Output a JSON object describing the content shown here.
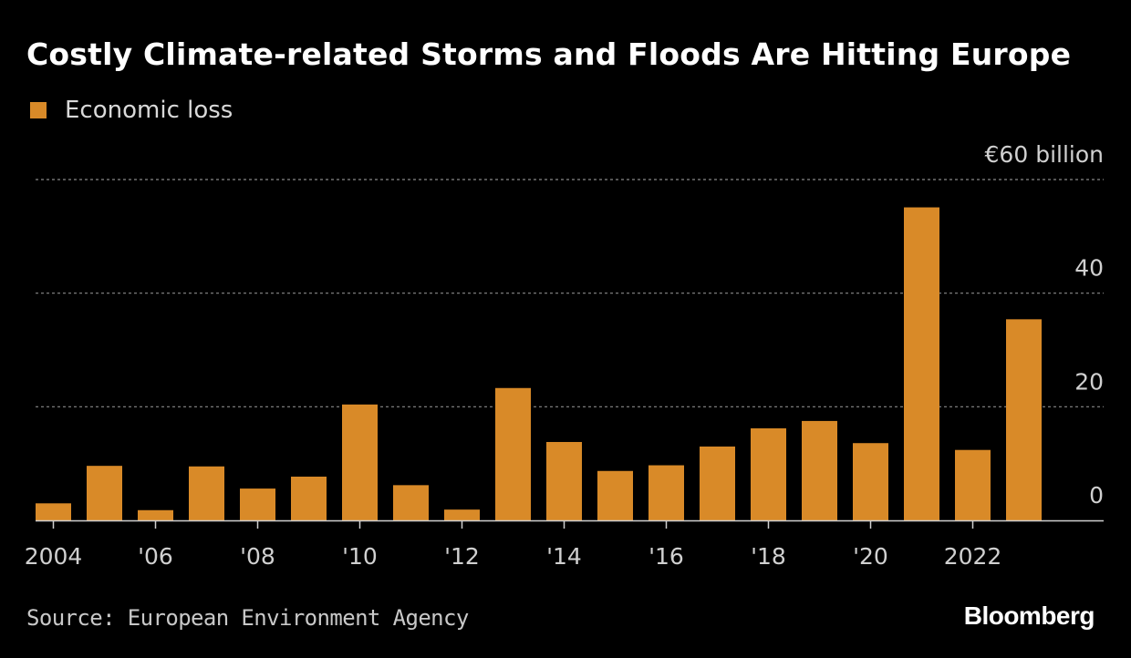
{
  "title": "Costly Climate-related Storms and Floods Are Hitting Europe",
  "legend": {
    "label": "Economic loss"
  },
  "source": "Source: European Environment Agency",
  "brand": "Bloomberg",
  "colors": {
    "bar": "#d98a28",
    "background": "#000000",
    "grid": "#8a8a8a",
    "axis": "#d0d0d0",
    "text": "#d0d0d0"
  },
  "chart_data": {
    "type": "bar",
    "title": "Costly Climate-related Storms and Floods Are Hitting Europe",
    "xlabel": "",
    "ylabel": "",
    "ylim": [
      0,
      60
    ],
    "grid": true,
    "legend_position": "top-left",
    "categories": [
      "2004",
      "2005",
      "2006",
      "2007",
      "2008",
      "2009",
      "2010",
      "2011",
      "2012",
      "2013",
      "2014",
      "2015",
      "2016",
      "2017",
      "2018",
      "2019",
      "2020",
      "2021",
      "2022",
      "2023"
    ],
    "series": [
      {
        "name": "Economic loss",
        "values": [
          3,
          9.6,
          1.8,
          9.5,
          5.6,
          7.7,
          20.4,
          6.2,
          1.9,
          23.3,
          13.8,
          8.7,
          9.7,
          13,
          16.2,
          17.5,
          13.6,
          55.1,
          12.4,
          35.4
        ]
      }
    ],
    "y_ticks": [
      {
        "value": 0,
        "label": "0"
      },
      {
        "value": 20,
        "label": "20"
      },
      {
        "value": 40,
        "label": "40"
      },
      {
        "value": 60,
        "label": "€60 billion"
      }
    ],
    "x_ticks": [
      {
        "category": "2004",
        "label": "2004"
      },
      {
        "category": "2006",
        "label": "'06"
      },
      {
        "category": "2008",
        "label": "'08"
      },
      {
        "category": "2010",
        "label": "'10"
      },
      {
        "category": "2012",
        "label": "'12"
      },
      {
        "category": "2014",
        "label": "'14"
      },
      {
        "category": "2016",
        "label": "'16"
      },
      {
        "category": "2018",
        "label": "'18"
      },
      {
        "category": "2020",
        "label": "'20"
      },
      {
        "category": "2022",
        "label": "2022"
      }
    ]
  }
}
